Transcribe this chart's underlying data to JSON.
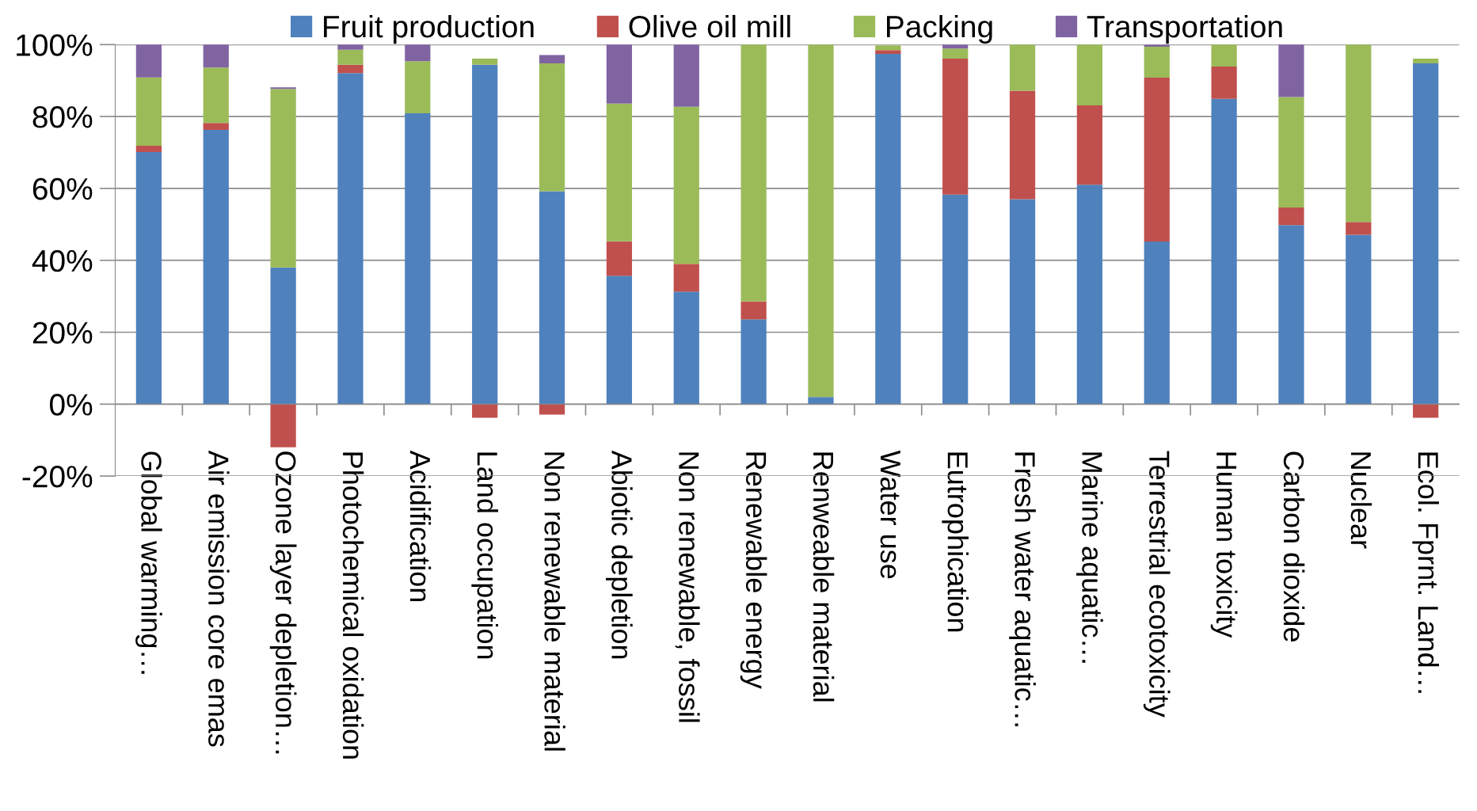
{
  "chart_data": {
    "type": "bar",
    "stacked": true,
    "categories": [
      "Global warming…",
      "Air emission core emas",
      "Ozone layer depletion…",
      "Photochemical oxidation",
      "Acidification",
      "Land occupation",
      "Non renewable material",
      "Abiotic depletion",
      "Non renewable, fossil",
      "Renewable energy",
      "Renweable material",
      "Water use",
      "Eutrophication",
      "Fresh water aquatic…",
      "Marine aquatic…",
      "Terrestrial ecotoxicity",
      "Human toxicity",
      "Carbon dioxide",
      "Nuclear",
      "Ecol. Fprnt. Land…"
    ],
    "series": [
      {
        "name": "Fruit production",
        "color": "#4f81bd",
        "values": [
          70.1,
          76.3,
          38.0,
          92.1,
          80.9,
          94.4,
          59.2,
          35.7,
          31.3,
          23.6,
          2.0,
          97.4,
          58.3,
          57.0,
          61.0,
          45.2,
          84.9,
          49.8,
          47.1,
          94.8
        ]
      },
      {
        "name": "Olive oil mill",
        "color": "#c0504d",
        "values": [
          1.8,
          1.9,
          -12.0,
          2.3,
          0,
          -3.8,
          -2.9,
          9.6,
          7.7,
          5.0,
          0,
          1.1,
          37.8,
          30.2,
          22.1,
          45.6,
          9.0,
          4.9,
          3.6,
          -3.8
        ]
      },
      {
        "name": "Packing",
        "color": "#9bbb59",
        "values": [
          19.0,
          15.4,
          49.7,
          4.2,
          14.5,
          1.7,
          35.6,
          38.3,
          43.7,
          71.4,
          98.0,
          1.3,
          2.8,
          12.8,
          16.9,
          8.6,
          6.1,
          30.7,
          49.3,
          1.3
        ]
      },
      {
        "name": "Transportation",
        "color": "#8064a2",
        "values": [
          9.1,
          6.4,
          0.4,
          1.4,
          4.6,
          0,
          2.3,
          16.4,
          17.3,
          0,
          0,
          0,
          1.1,
          0,
          0,
          0.6,
          0,
          14.6,
          0,
          0
        ]
      }
    ],
    "ylim": [
      -20,
      100
    ],
    "yticks": [
      {
        "value": -20,
        "label": "-20%"
      },
      {
        "value": 0,
        "label": "0%"
      },
      {
        "value": 20,
        "label": "20%"
      },
      {
        "value": 40,
        "label": "40%"
      },
      {
        "value": 60,
        "label": "60%"
      },
      {
        "value": 80,
        "label": "80%"
      },
      {
        "value": 100,
        "label": "100%"
      }
    ],
    "grid": "y",
    "legend": "top"
  }
}
